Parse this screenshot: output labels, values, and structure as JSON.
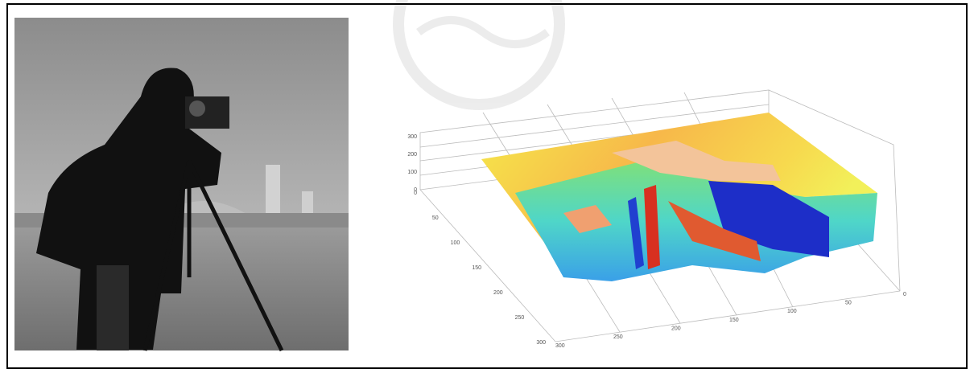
{
  "surface_plot": {
    "z_ticks": [
      "300",
      "200",
      "100",
      "0"
    ],
    "y_ticks": [
      "0",
      "50",
      "100",
      "150",
      "200",
      "250",
      "300"
    ],
    "x_ticks": [
      "300",
      "250",
      "200",
      "150",
      "100",
      "50",
      "0"
    ]
  }
}
